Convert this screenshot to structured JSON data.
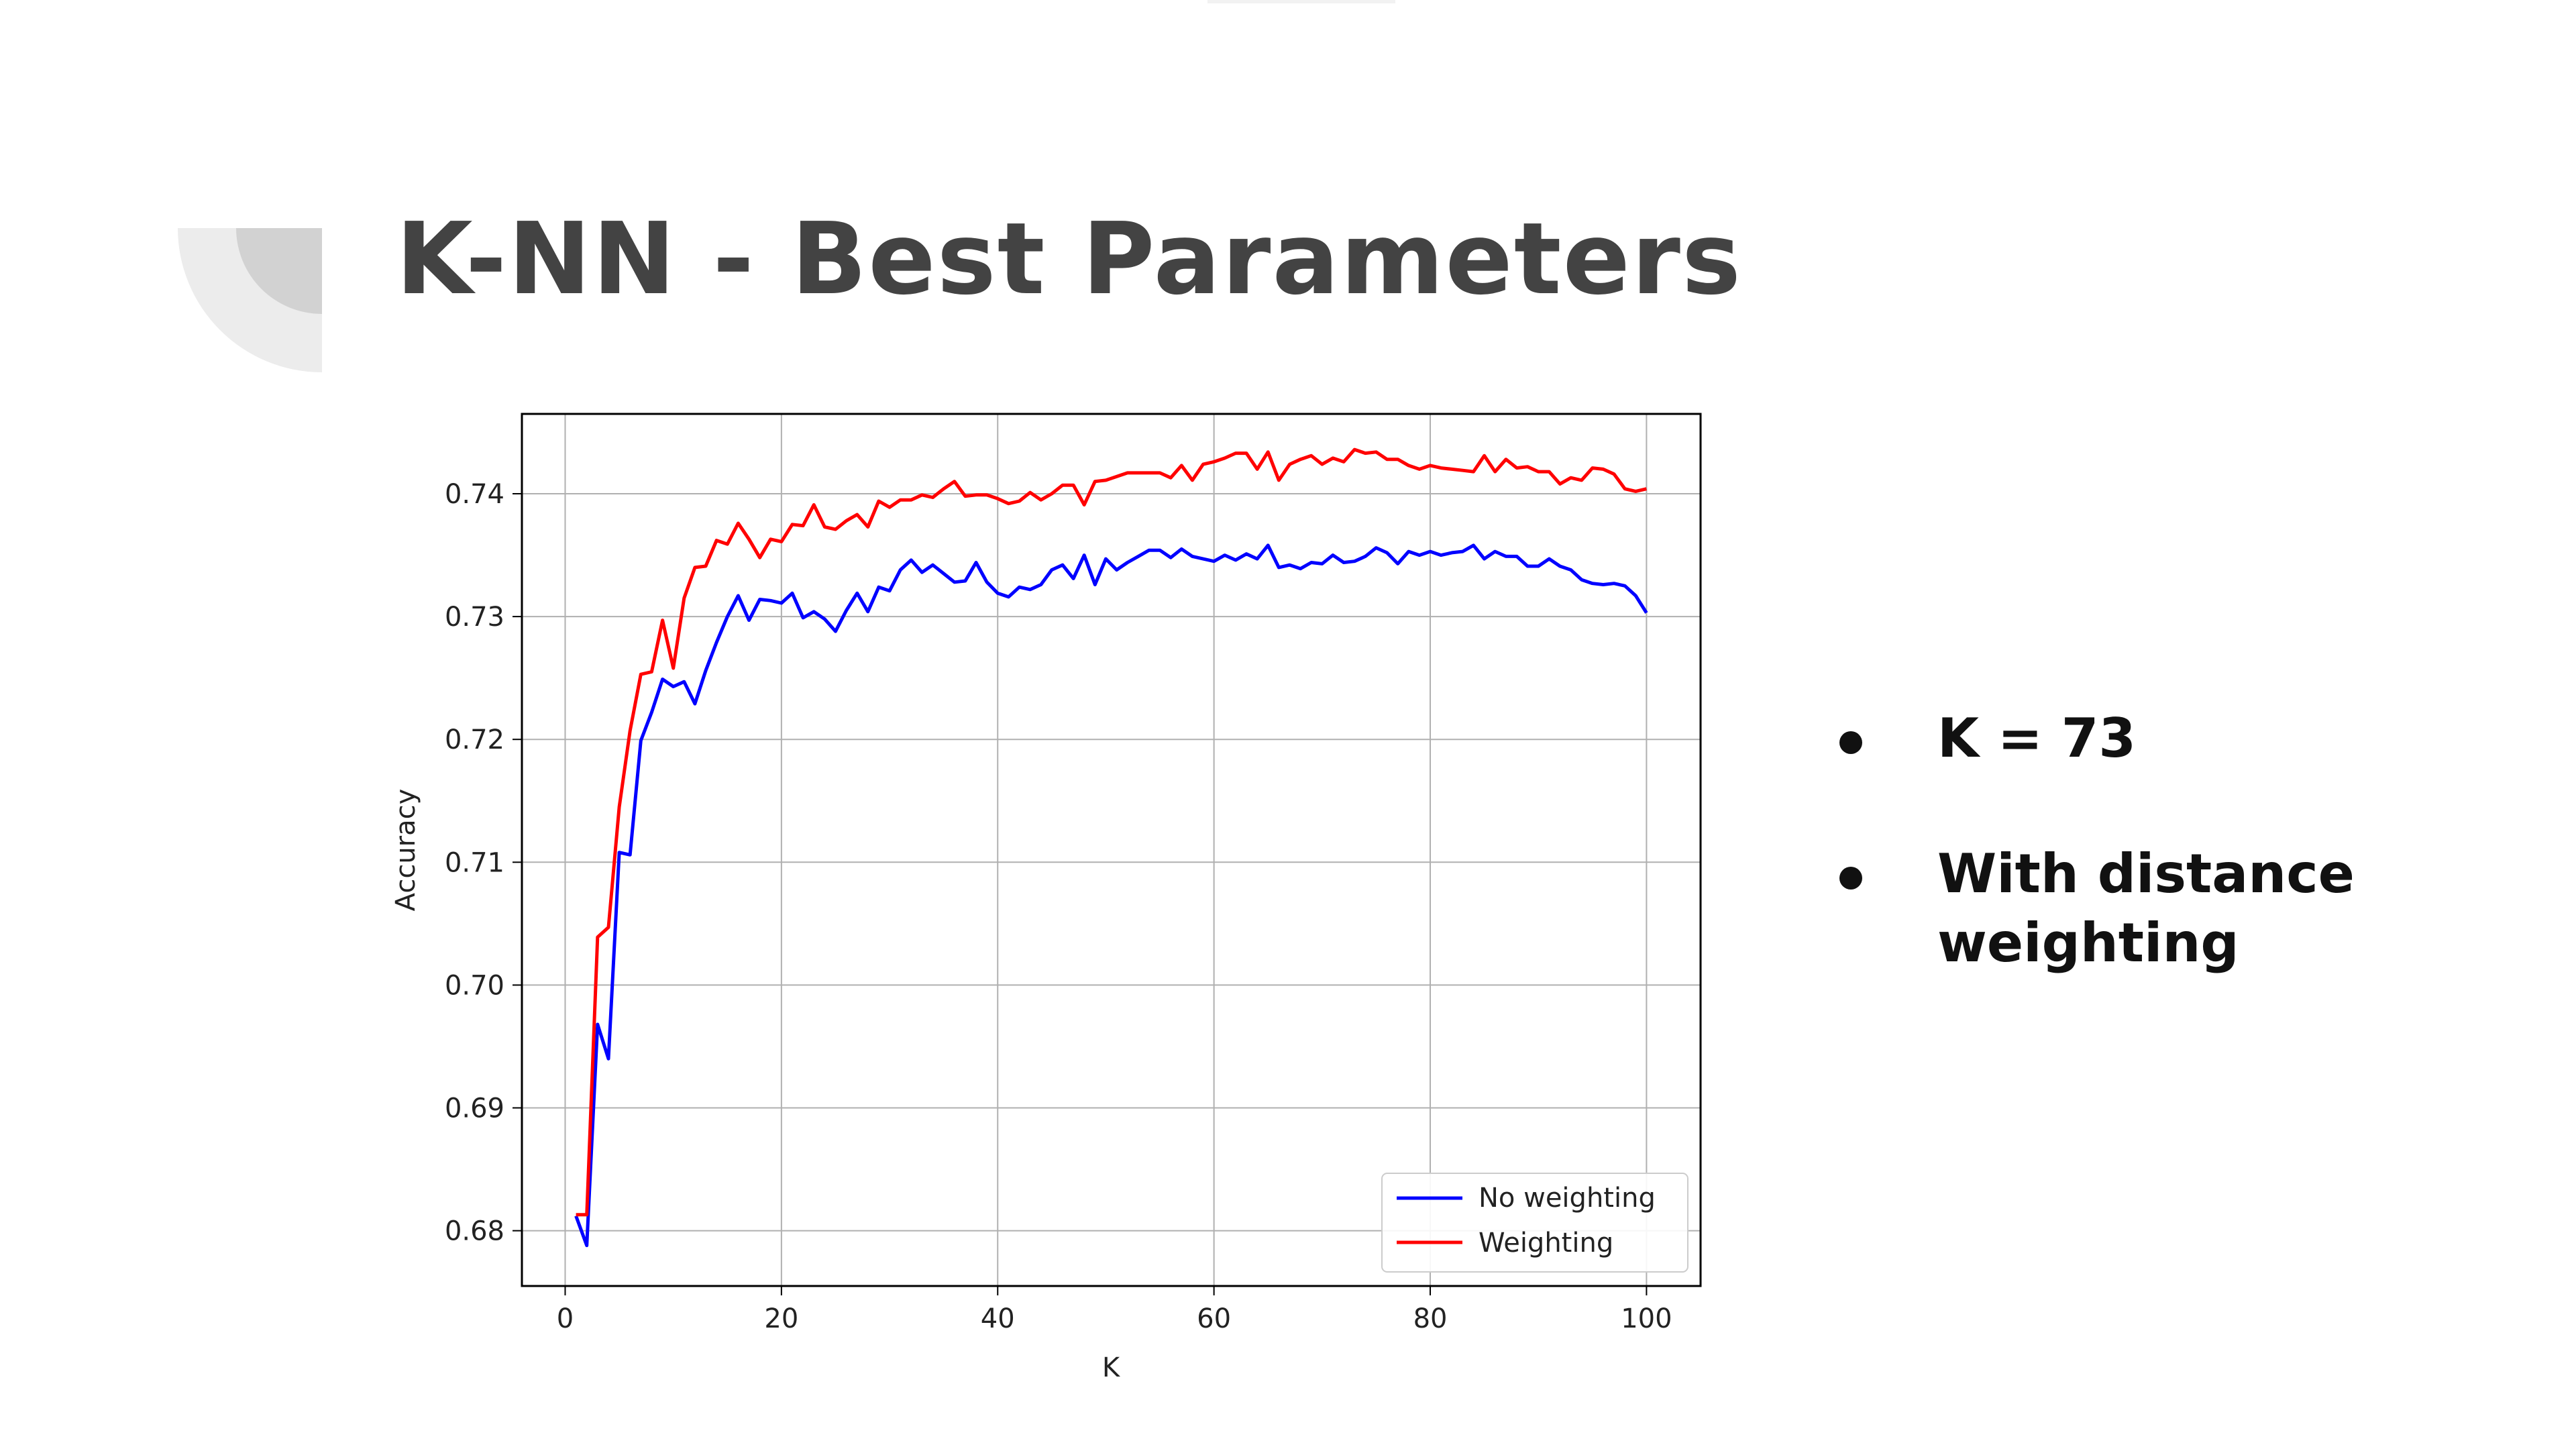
{
  "slide": {
    "title": "K-NN - Best Parameters",
    "bullets": [
      "K = 73",
      "With distance weighting"
    ]
  },
  "chart_data": {
    "type": "line",
    "xlabel": "K",
    "ylabel": "Accuracy",
    "xlim": [
      -4,
      105
    ],
    "ylim": [
      0.6755,
      0.7465
    ],
    "xticks": [
      0,
      20,
      40,
      60,
      80,
      100
    ],
    "yticks": [
      0.68,
      0.69,
      0.7,
      0.71,
      0.72,
      0.73,
      0.74
    ],
    "ytick_labels": [
      "0.68",
      "0.69",
      "0.70",
      "0.71",
      "0.72",
      "0.73",
      "0.74"
    ],
    "grid": true,
    "legend_position": "lower-right",
    "x_start": 1,
    "series": [
      {
        "name": "No weighting",
        "color": "#0000ff",
        "values": [
          0.6812,
          0.6788,
          0.6968,
          0.694,
          0.7108,
          0.7106,
          0.7199,
          0.7222,
          0.7249,
          0.7243,
          0.7247,
          0.7229,
          0.7256,
          0.7279,
          0.73,
          0.7317,
          0.7297,
          0.7314,
          0.7313,
          0.7311,
          0.7319,
          0.7299,
          0.7304,
          0.7298,
          0.7288,
          0.7305,
          0.7319,
          0.7304,
          0.7324,
          0.7321,
          0.7338,
          0.7346,
          0.7336,
          0.7342,
          0.7335,
          0.7328,
          0.7329,
          0.7344,
          0.7328,
          0.7319,
          0.7316,
          0.7324,
          0.7322,
          0.7326,
          0.7338,
          0.7342,
          0.7331,
          0.735,
          0.7326,
          0.7347,
          0.7338,
          0.7344,
          0.7349,
          0.7354,
          0.7354,
          0.7348,
          0.7355,
          0.7349,
          0.7347,
          0.7345,
          0.735,
          0.7346,
          0.7351,
          0.7347,
          0.7358,
          0.734,
          0.7342,
          0.7339,
          0.7344,
          0.7343,
          0.735,
          0.7344,
          0.7345,
          0.7349,
          0.7356,
          0.7352,
          0.7343,
          0.7353,
          0.735,
          0.7353,
          0.735,
          0.7352,
          0.7353,
          0.7358,
          0.7347,
          0.7353,
          0.7349,
          0.7349,
          0.7341,
          0.7341,
          0.7347,
          0.7341,
          0.7338,
          0.733,
          0.7327,
          0.7326,
          0.7327,
          0.7325,
          0.7317,
          0.7303
        ]
      },
      {
        "name": "Weighting",
        "color": "#ff0000",
        "values": [
          0.6813,
          0.6813,
          0.7039,
          0.7047,
          0.7145,
          0.7207,
          0.7253,
          0.7255,
          0.7297,
          0.7258,
          0.7315,
          0.734,
          0.7341,
          0.7362,
          0.7359,
          0.7376,
          0.7363,
          0.7348,
          0.7363,
          0.7361,
          0.7375,
          0.7374,
          0.7391,
          0.7373,
          0.7371,
          0.7378,
          0.7383,
          0.7373,
          0.7394,
          0.7389,
          0.7395,
          0.7395,
          0.7399,
          0.7397,
          0.7404,
          0.741,
          0.7398,
          0.7399,
          0.7399,
          0.7396,
          0.7392,
          0.7394,
          0.7401,
          0.7395,
          0.74,
          0.7407,
          0.7407,
          0.7391,
          0.741,
          0.7411,
          0.7414,
          0.7417,
          0.7417,
          0.7417,
          0.7417,
          0.7413,
          0.7423,
          0.7411,
          0.7424,
          0.7426,
          0.7429,
          0.7433,
          0.7433,
          0.742,
          0.7434,
          0.7411,
          0.7424,
          0.7428,
          0.7431,
          0.7424,
          0.7429,
          0.7426,
          0.7436,
          0.7433,
          0.7434,
          0.7428,
          0.7428,
          0.7423,
          0.742,
          0.7423,
          0.7421,
          0.742,
          0.7419,
          0.7418,
          0.7431,
          0.7418,
          0.7428,
          0.7421,
          0.7422,
          0.7418,
          0.7418,
          0.7408,
          0.7413,
          0.7411,
          0.7421,
          0.742,
          0.7416,
          0.7404,
          0.7402,
          0.7404
        ]
      }
    ]
  }
}
